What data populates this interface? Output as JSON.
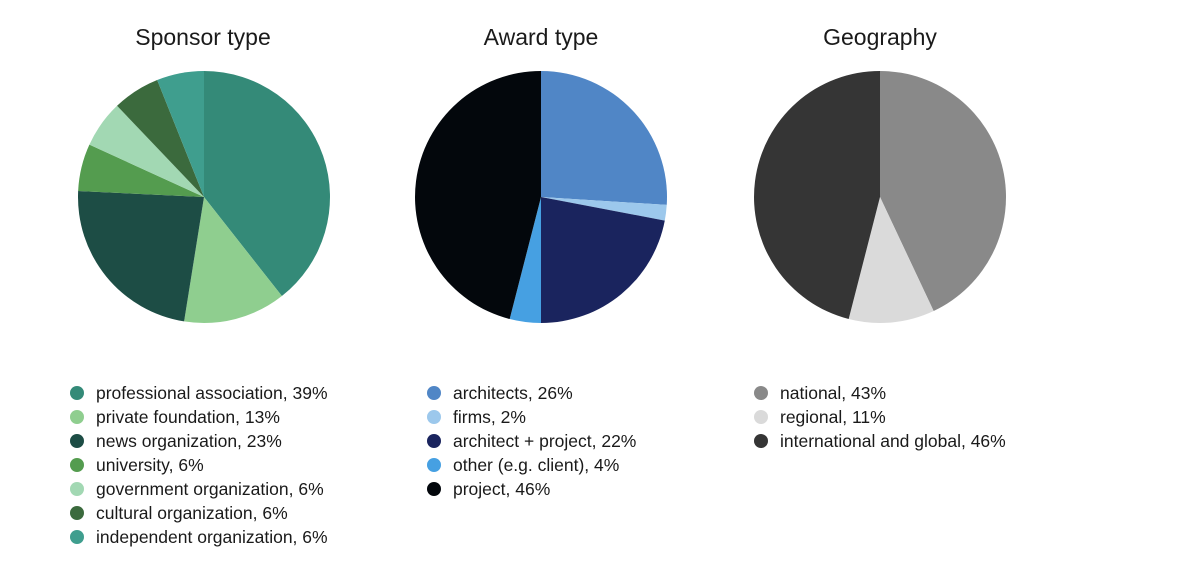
{
  "chart_data": [
    {
      "type": "pie",
      "title": "Sponsor type",
      "slices": [
        {
          "label": "professional association, 39%",
          "value": 39,
          "color": "#348a78"
        },
        {
          "label": "private foundation, 13%",
          "value": 13,
          "color": "#8fce8f"
        },
        {
          "label": "news organization, 23%",
          "value": 23,
          "color": "#1d4d45"
        },
        {
          "label": "university, 6%",
          "value": 6,
          "color": "#549c4f"
        },
        {
          "label": "government organization, 6%",
          "value": 6,
          "color": "#a2d8b3"
        },
        {
          "label": "cultural organization, 6%",
          "value": 6,
          "color": "#3b6a3d"
        },
        {
          "label": "independent organization, 6%",
          "value": 6,
          "color": "#3f9e8e"
        }
      ]
    },
    {
      "type": "pie",
      "title": "Award type",
      "slices": [
        {
          "label": "architects, 26%",
          "value": 26,
          "color": "#5086c6"
        },
        {
          "label": "firms, 2%",
          "value": 2,
          "color": "#9cc8ec"
        },
        {
          "label": "architect + project, 22%",
          "value": 22,
          "color": "#1a245e"
        },
        {
          "label": "other (e.g. client), 4%",
          "value": 4,
          "color": "#46a0e2"
        },
        {
          "label": "project, 46%",
          "value": 46,
          "color": "#03070c"
        }
      ]
    },
    {
      "type": "pie",
      "title": "Geography",
      "slices": [
        {
          "label": "national, 43%",
          "value": 43,
          "color": "#898989"
        },
        {
          "label": "regional, 11%",
          "value": 11,
          "color": "#dadada"
        },
        {
          "label": "international and global, 46%",
          "value": 46,
          "color": "#353535"
        }
      ]
    }
  ]
}
